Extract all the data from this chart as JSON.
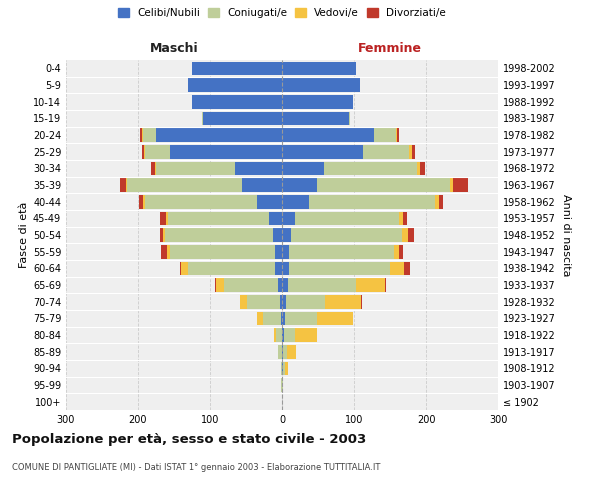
{
  "age_groups": [
    "100+",
    "95-99",
    "90-94",
    "85-89",
    "80-84",
    "75-79",
    "70-74",
    "65-69",
    "60-64",
    "55-59",
    "50-54",
    "45-49",
    "40-44",
    "35-39",
    "30-34",
    "25-29",
    "20-24",
    "15-19",
    "10-14",
    "5-9",
    "0-4"
  ],
  "birth_years": [
    "≤ 1902",
    "1903-1907",
    "1908-1912",
    "1913-1917",
    "1918-1922",
    "1923-1927",
    "1928-1932",
    "1933-1937",
    "1938-1942",
    "1943-1947",
    "1948-1952",
    "1953-1957",
    "1958-1962",
    "1963-1967",
    "1968-1972",
    "1973-1977",
    "1978-1982",
    "1983-1987",
    "1988-1992",
    "1993-1997",
    "1998-2002"
  ],
  "maschi": {
    "celibi": [
      0,
      0,
      0,
      0,
      0,
      2,
      3,
      5,
      10,
      10,
      12,
      18,
      35,
      55,
      65,
      155,
      175,
      110,
      125,
      130,
      125
    ],
    "coniugati": [
      0,
      1,
      2,
      5,
      8,
      25,
      45,
      75,
      120,
      145,
      150,
      140,
      155,
      160,
      110,
      35,
      18,
      1,
      0,
      0,
      0
    ],
    "vedovi": [
      0,
      0,
      0,
      1,
      3,
      8,
      10,
      12,
      10,
      5,
      3,
      3,
      3,
      2,
      2,
      2,
      2,
      0,
      0,
      0,
      0
    ],
    "divorziati": [
      0,
      0,
      0,
      0,
      0,
      0,
      1,
      1,
      1,
      8,
      5,
      8,
      5,
      8,
      5,
      2,
      2,
      0,
      0,
      0,
      0
    ]
  },
  "femmine": {
    "nubili": [
      0,
      0,
      1,
      2,
      3,
      4,
      5,
      8,
      10,
      10,
      12,
      18,
      38,
      48,
      58,
      112,
      128,
      93,
      98,
      108,
      103
    ],
    "coniugate": [
      0,
      1,
      3,
      5,
      15,
      45,
      55,
      95,
      140,
      145,
      155,
      145,
      175,
      185,
      130,
      65,
      30,
      2,
      0,
      0,
      0
    ],
    "vedove": [
      0,
      1,
      5,
      12,
      30,
      50,
      50,
      40,
      20,
      8,
      8,
      5,
      5,
      5,
      3,
      3,
      2,
      0,
      0,
      0,
      0
    ],
    "divorziate": [
      0,
      0,
      0,
      0,
      0,
      0,
      1,
      1,
      8,
      5,
      8,
      5,
      5,
      20,
      8,
      5,
      2,
      0,
      0,
      0,
      0
    ]
  },
  "colors": {
    "celibi_nubili": "#4472C4",
    "coniugati": "#BFCE9A",
    "vedovi": "#F5C342",
    "divorziati": "#C0392B"
  },
  "xlim": 300,
  "title": "Popolazione per età, sesso e stato civile - 2003",
  "subtitle": "COMUNE DI PANTIGLIATE (MI) - Dati ISTAT 1° gennaio 2003 - Elaborazione TUTTITALIA.IT",
  "ylabel_left": "Fasce di età",
  "ylabel_right": "Anni di nascita",
  "xlabel_top_left": "Maschi",
  "xlabel_top_right": "Femmine",
  "legend_labels": [
    "Celibi/Nubili",
    "Coniugati/e",
    "Vedovi/e",
    "Divorziati/e"
  ],
  "bg_color": "#efefef"
}
